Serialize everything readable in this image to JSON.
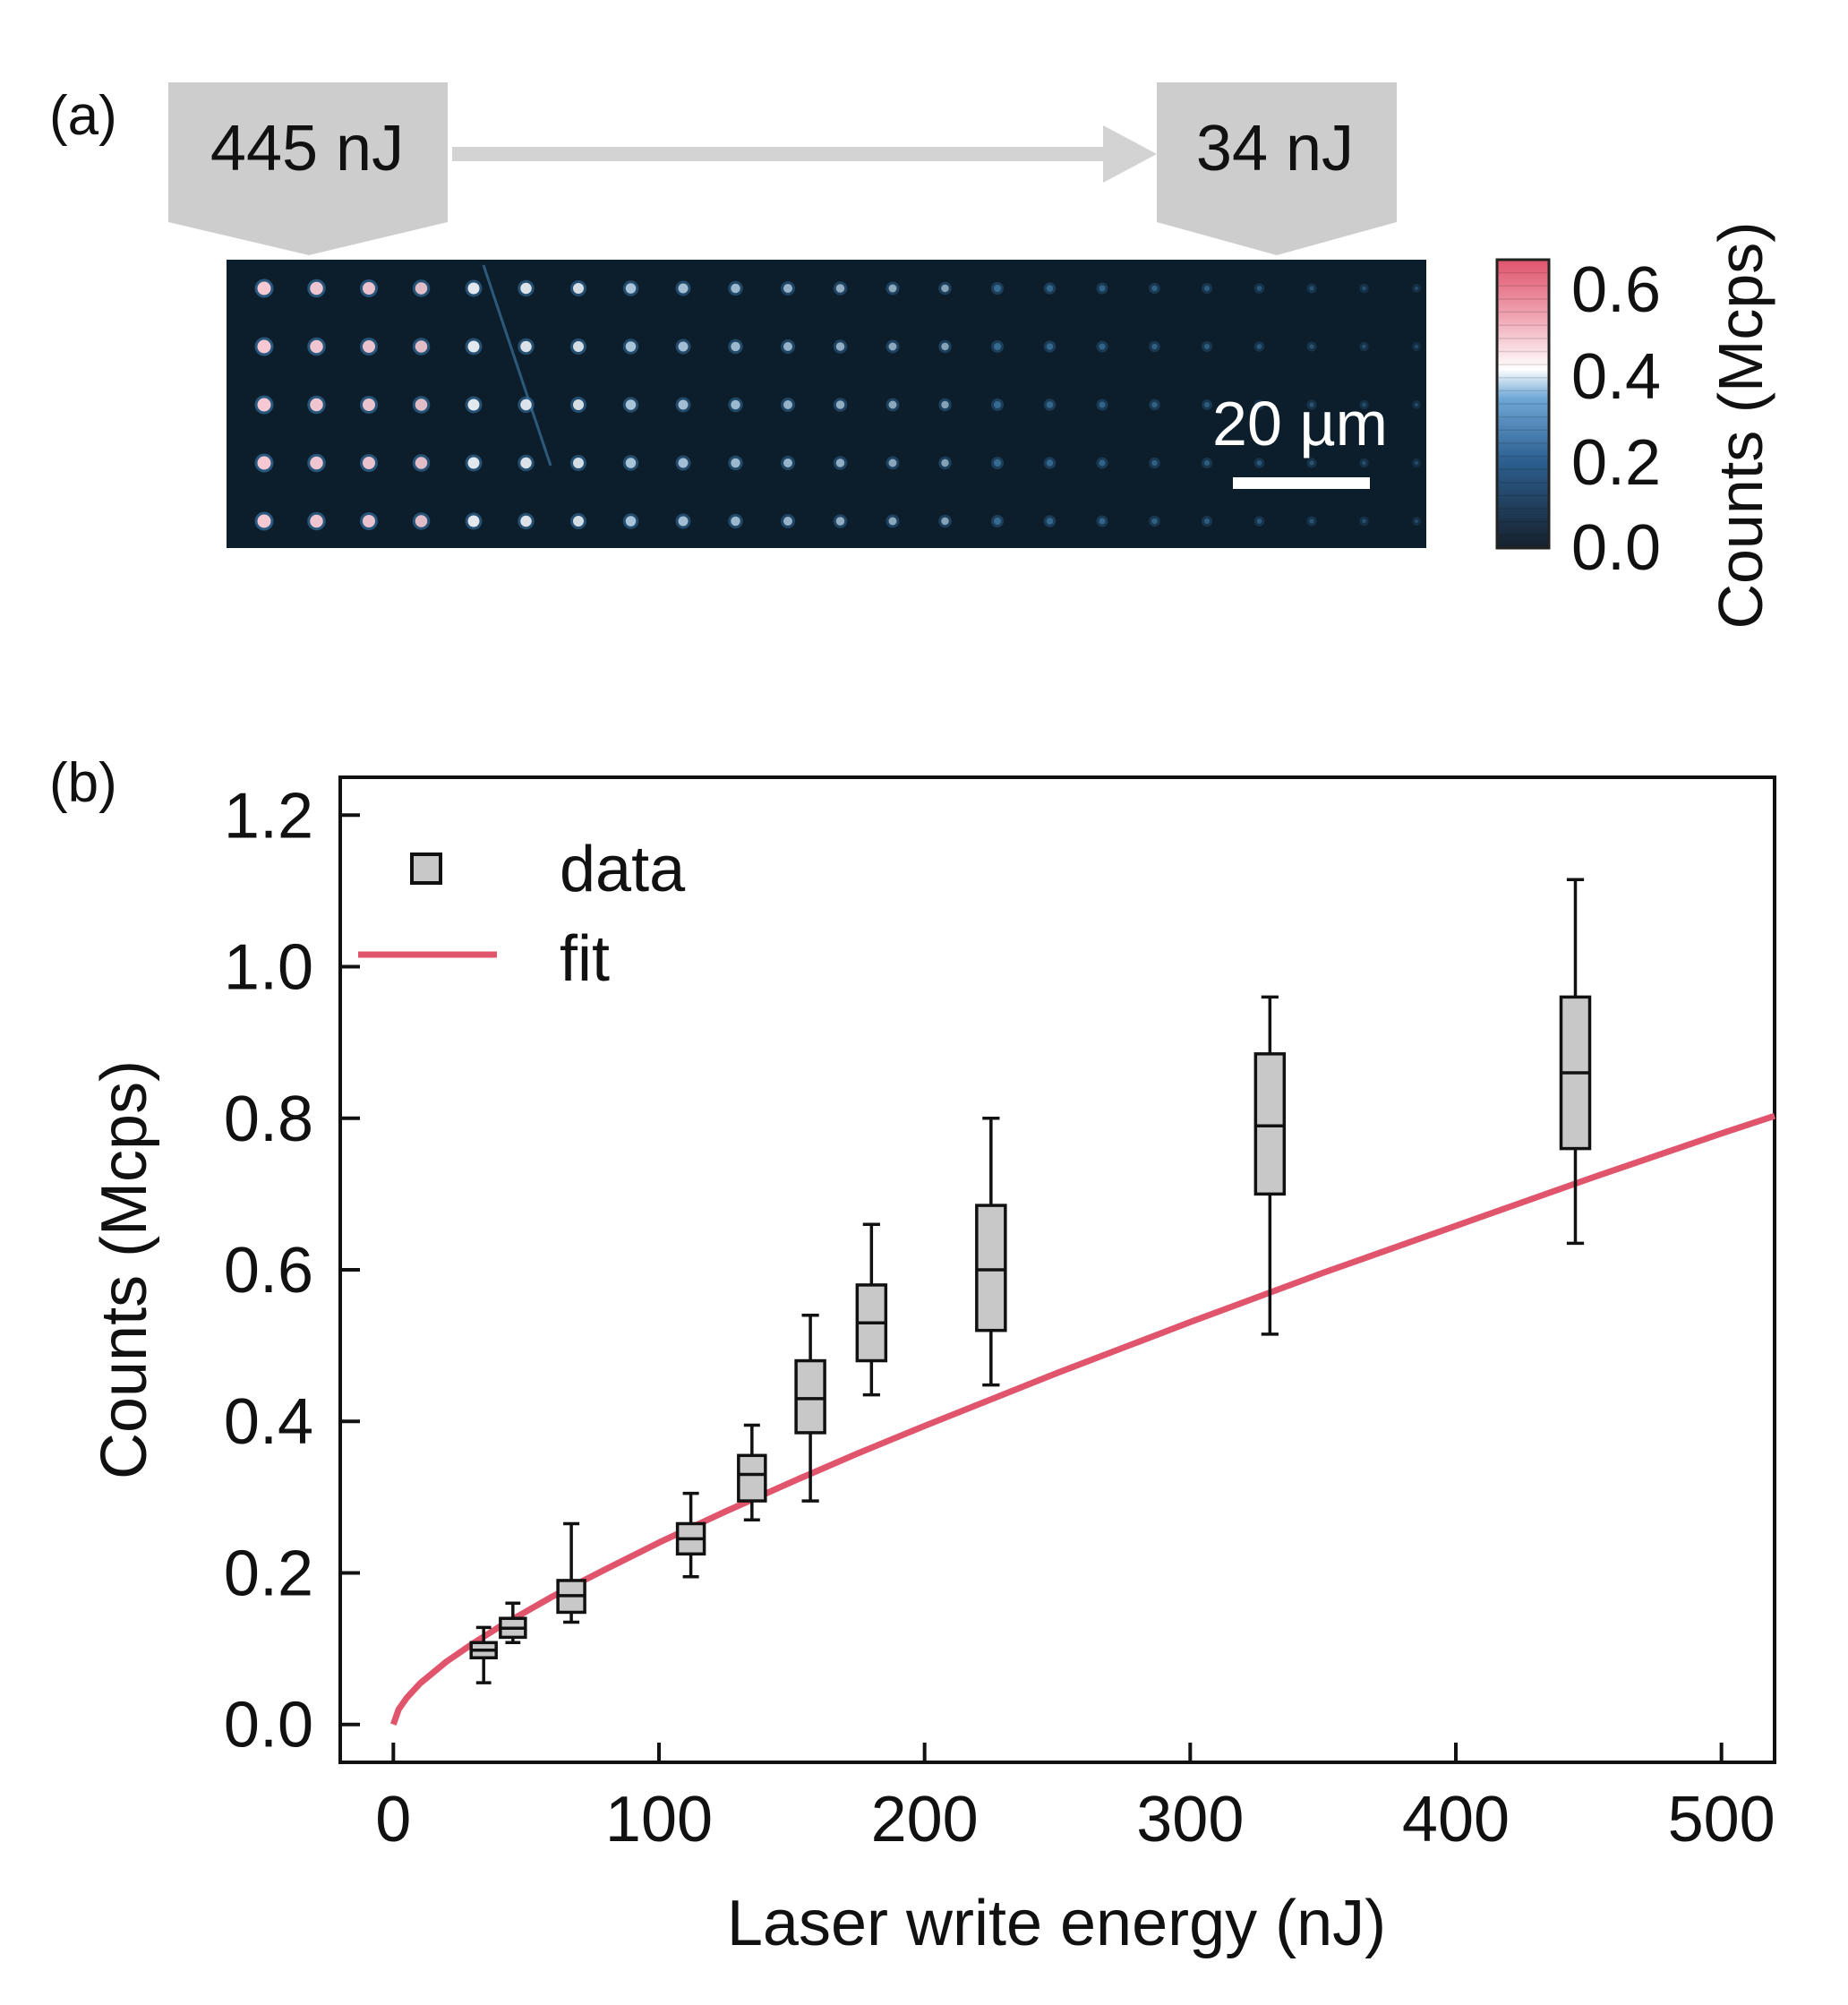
{
  "panel_a": {
    "label": "(a)",
    "start_energy_label": "445 nJ",
    "end_energy_label": "34 nJ",
    "scale_bar_label": "20 µm",
    "colorbar": {
      "title": "Counts (Mcps)",
      "ticks": [
        "0.6",
        "0.4",
        "0.2",
        "0.0"
      ],
      "range": [
        0,
        0.65
      ],
      "colors": {
        "low": "#16202c",
        "mid_blue": "#3a82bf",
        "white": "#ffffff",
        "high": "#e0546c"
      }
    },
    "image_background": "#0c1e2c",
    "array": {
      "rows": 5,
      "columns": 23,
      "note_col_energy": "decreasing left to right"
    }
  },
  "panel_b": {
    "label": "(b)",
    "legend": {
      "data_label": "data",
      "fit_label": "fit"
    }
  },
  "chart_data": {
    "type": "box",
    "title": "",
    "xlabel": "Laser write energy (nJ)",
    "ylabel": "Counts (Mcps)",
    "xlim": [
      -20,
      520
    ],
    "ylim": [
      -0.05,
      1.25
    ],
    "xticks": [
      0,
      100,
      200,
      300,
      400,
      500
    ],
    "xtick_labels": [
      "0",
      "100",
      "200",
      "300",
      "400",
      "500"
    ],
    "yticks": [
      0.0,
      0.2,
      0.4,
      0.6,
      0.8,
      1.0,
      1.2
    ],
    "ytick_labels": [
      "0.0",
      "0.2",
      "0.4",
      "0.6",
      "0.8",
      "1.0",
      "1.2"
    ],
    "grid": false,
    "legend_position": "top-left",
    "series": [
      {
        "name": "data",
        "kind": "box",
        "color": "#c8c8c8",
        "boxes": [
          {
            "x": 34,
            "whisker_low": 0.055,
            "q1": 0.088,
            "median": 0.098,
            "q3": 0.108,
            "whisker_high": 0.128
          },
          {
            "x": 45,
            "whisker_low": 0.108,
            "q1": 0.115,
            "median": 0.127,
            "q3": 0.14,
            "whisker_high": 0.16
          },
          {
            "x": 67,
            "whisker_low": 0.135,
            "q1": 0.148,
            "median": 0.17,
            "q3": 0.19,
            "whisker_high": 0.265
          },
          {
            "x": 112,
            "whisker_low": 0.195,
            "q1": 0.225,
            "median": 0.245,
            "q3": 0.265,
            "whisker_high": 0.305
          },
          {
            "x": 135,
            "whisker_low": 0.27,
            "q1": 0.295,
            "median": 0.33,
            "q3": 0.355,
            "whisker_high": 0.395
          },
          {
            "x": 157,
            "whisker_low": 0.295,
            "q1": 0.385,
            "median": 0.43,
            "q3": 0.48,
            "whisker_high": 0.54
          },
          {
            "x": 180,
            "whisker_low": 0.435,
            "q1": 0.48,
            "median": 0.53,
            "q3": 0.58,
            "whisker_high": 0.66
          },
          {
            "x": 225,
            "whisker_low": 0.448,
            "q1": 0.52,
            "median": 0.6,
            "q3": 0.685,
            "whisker_high": 0.8
          },
          {
            "x": 330,
            "whisker_low": 0.515,
            "q1": 0.7,
            "median": 0.79,
            "q3": 0.885,
            "whisker_high": 0.96
          },
          {
            "x": 445,
            "whisker_low": 0.635,
            "q1": 0.76,
            "median": 0.86,
            "q3": 0.96,
            "whisker_high": 1.115
          }
        ]
      },
      {
        "name": "fit",
        "kind": "line",
        "color": "#e0546c",
        "x": [
          0,
          2,
          5,
          10,
          20,
          30,
          40,
          60,
          80,
          100,
          125,
          150,
          175,
          200,
          250,
          300,
          350,
          400,
          450,
          500,
          520
        ],
        "y": [
          0.0,
          0.02,
          0.035,
          0.054,
          0.083,
          0.107,
          0.129,
          0.169,
          0.205,
          0.24,
          0.281,
          0.32,
          0.358,
          0.394,
          0.464,
          0.531,
          0.596,
          0.658,
          0.72,
          0.78,
          0.803
        ]
      }
    ]
  }
}
